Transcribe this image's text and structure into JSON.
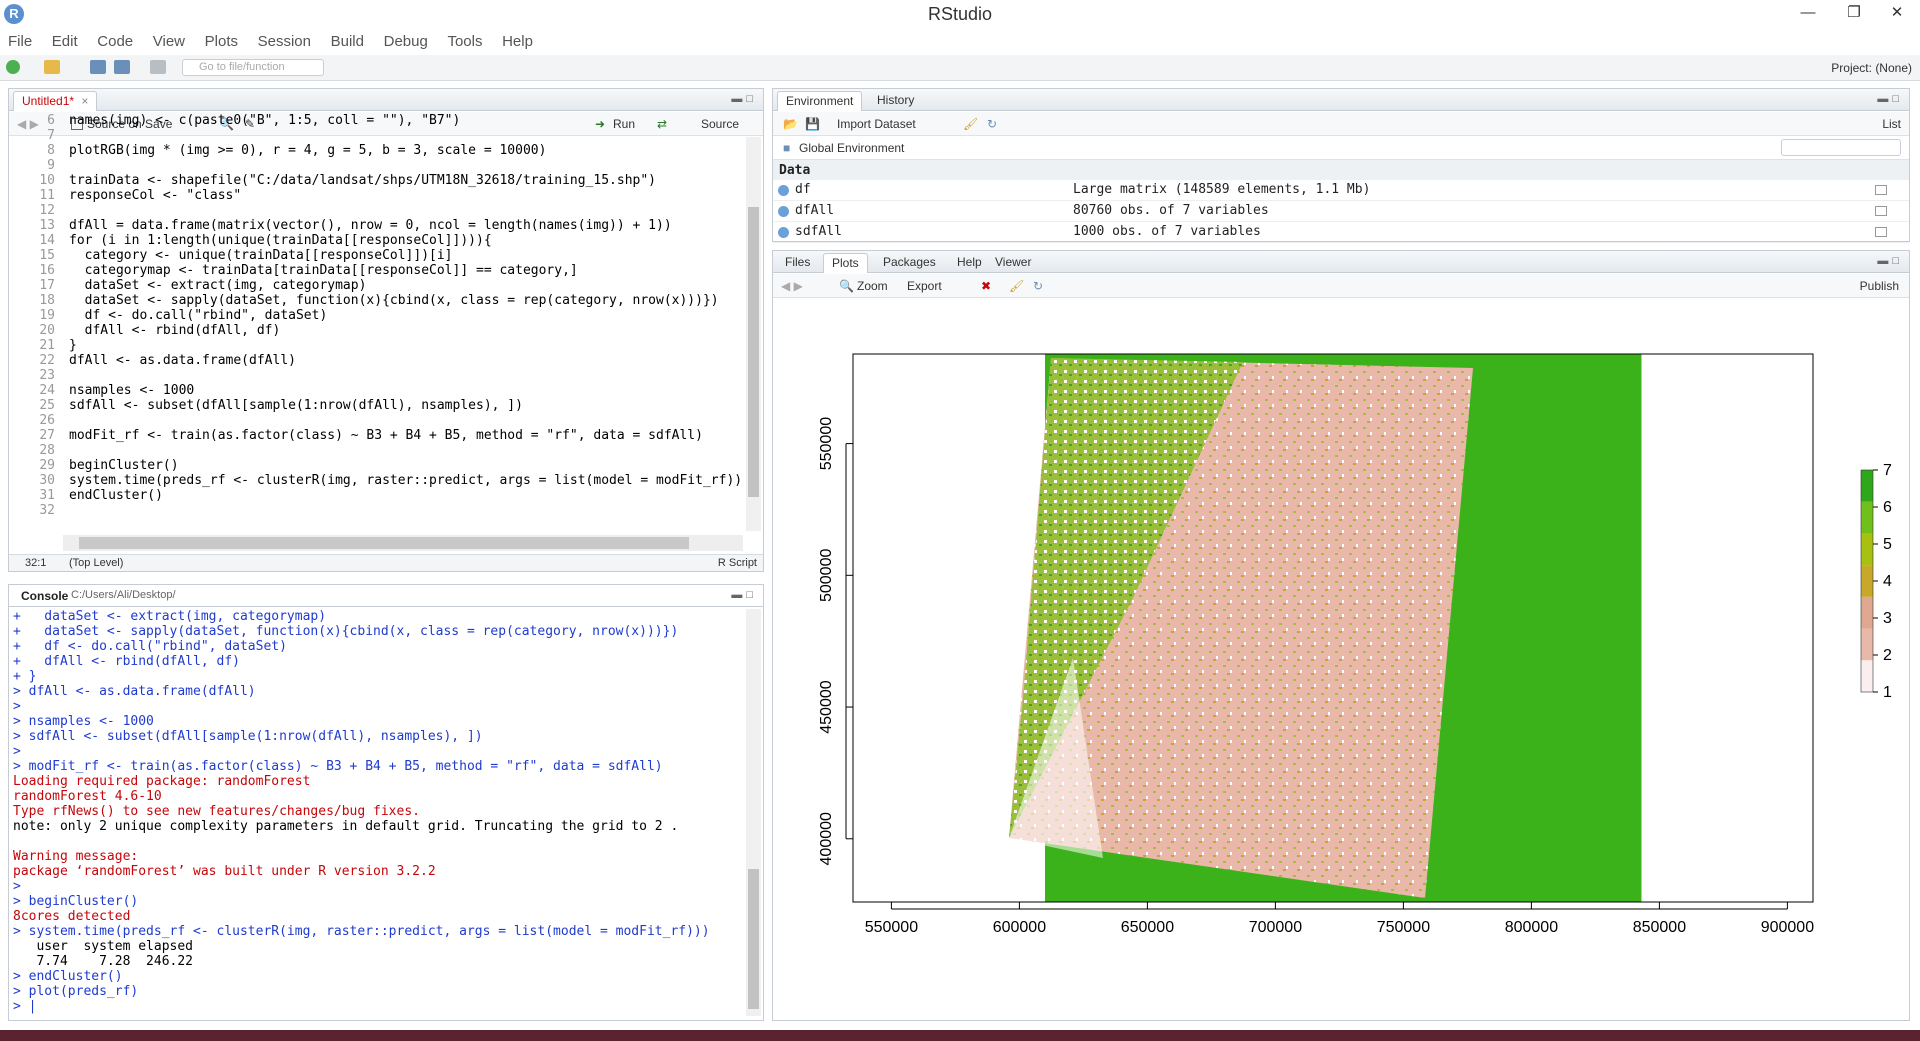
{
  "app": {
    "title": "RStudio"
  },
  "menu": [
    "File",
    "Edit",
    "Code",
    "View",
    "Plots",
    "Session",
    "Build",
    "Debug",
    "Tools",
    "Help"
  ],
  "toolbar": {
    "goto_placeholder": "Go to file/function",
    "project": "Project: (None)"
  },
  "editor": {
    "tab": "Untitled1*",
    "source_on_save": "Source on Save",
    "run": "Run",
    "source": "Source",
    "lines": [
      {
        "n": "6",
        "t": "names(img) <- c(paste0(\"B\", 1:5, coll = \"\"), \"B7\")"
      },
      {
        "n": "7",
        "t": ""
      },
      {
        "n": "8",
        "t": "plotRGB(img * (img >= 0), r = 4, g = 5, b = 3, scale = 10000)"
      },
      {
        "n": "9",
        "t": ""
      },
      {
        "n": "10",
        "t": "trainData <- shapefile(\"C:/data/landsat/shps/UTM18N_32618/training_15.shp\")"
      },
      {
        "n": "11",
        "t": "responseCol <- \"class\""
      },
      {
        "n": "12",
        "t": ""
      },
      {
        "n": "13",
        "t": "dfAll = data.frame(matrix(vector(), nrow = 0, ncol = length(names(img)) + 1))"
      },
      {
        "n": "14",
        "t": "for (i in 1:length(unique(trainData[[responseCol]]))){"
      },
      {
        "n": "15",
        "t": "  category <- unique(trainData[[responseCol]])[i]"
      },
      {
        "n": "16",
        "t": "  categorymap <- trainData[trainData[[responseCol]] == category,]"
      },
      {
        "n": "17",
        "t": "  dataSet <- extract(img, categorymap)"
      },
      {
        "n": "18",
        "t": "  dataSet <- sapply(dataSet, function(x){cbind(x, class = rep(category, nrow(x)))})"
      },
      {
        "n": "19",
        "t": "  df <- do.call(\"rbind\", dataSet)"
      },
      {
        "n": "20",
        "t": "  dfAll <- rbind(dfAll, df)"
      },
      {
        "n": "21",
        "t": "}"
      },
      {
        "n": "22",
        "t": "dfAll <- as.data.frame(dfAll)"
      },
      {
        "n": "23",
        "t": ""
      },
      {
        "n": "24",
        "t": "nsamples <- 1000"
      },
      {
        "n": "25",
        "t": "sdfAll <- subset(dfAll[sample(1:nrow(dfAll), nsamples), ])"
      },
      {
        "n": "26",
        "t": ""
      },
      {
        "n": "27",
        "t": "modFit_rf <- train(as.factor(class) ~ B3 + B4 + B5, method = \"rf\", data = sdfAll)"
      },
      {
        "n": "28",
        "t": ""
      },
      {
        "n": "29",
        "t": "beginCluster()"
      },
      {
        "n": "30",
        "t": "system.time(preds_rf <- clusterR(img, raster::predict, args = list(model = modFit_rf)))"
      },
      {
        "n": "31",
        "t": "endCluster()"
      },
      {
        "n": "32",
        "t": ""
      }
    ],
    "status_pos": "32:1",
    "status_scope": "(Top Level)",
    "status_type": "R Script"
  },
  "console": {
    "title": "Console",
    "path": "C:/Users/Ali/Desktop/",
    "lines": [
      {
        "c": "blue",
        "t": "+   dataSet <- extract(img, categorymap)"
      },
      {
        "c": "blue",
        "t": "+   dataSet <- sapply(dataSet, function(x){cbind(x, class = rep(category, nrow(x)))})"
      },
      {
        "c": "blue",
        "t": "+   df <- do.call(\"rbind\", dataSet)"
      },
      {
        "c": "blue",
        "t": "+   dfAll <- rbind(dfAll, df)"
      },
      {
        "c": "blue",
        "t": "+ }"
      },
      {
        "c": "blue",
        "t": "> dfAll <- as.data.frame(dfAll)"
      },
      {
        "c": "blue",
        "t": ">"
      },
      {
        "c": "blue",
        "t": "> nsamples <- 1000"
      },
      {
        "c": "blue",
        "t": "> sdfAll <- subset(dfAll[sample(1:nrow(dfAll), nsamples), ])"
      },
      {
        "c": "blue",
        "t": ">"
      },
      {
        "c": "blue",
        "t": "> modFit_rf <- train(as.factor(class) ~ B3 + B4 + B5, method = \"rf\", data = sdfAll)"
      },
      {
        "c": "red",
        "t": "Loading required package: randomForest"
      },
      {
        "c": "red",
        "t": "randomForest 4.6-10"
      },
      {
        "c": "red",
        "t": "Type rfNews() to see new features/changes/bug fixes."
      },
      {
        "c": "black",
        "t": "note: only 2 unique complexity parameters in default grid. Truncating the grid to 2 ."
      },
      {
        "c": "black",
        "t": ""
      },
      {
        "c": "red",
        "t": "Warning message:"
      },
      {
        "c": "red",
        "t": "package ‘randomForest’ was built under R version 3.2.2"
      },
      {
        "c": "blue",
        "t": ">"
      },
      {
        "c": "blue",
        "t": "> beginCluster()"
      },
      {
        "c": "red",
        "t": "8cores detected"
      },
      {
        "c": "blue",
        "t": "> system.time(preds_rf <- clusterR(img, raster::predict, args = list(model = modFit_rf)))"
      },
      {
        "c": "black",
        "t": "   user  system elapsed"
      },
      {
        "c": "black",
        "t": "   7.74    7.28  246.22"
      },
      {
        "c": "blue",
        "t": "> endCluster()"
      },
      {
        "c": "blue",
        "t": "> plot(preds_rf)"
      },
      {
        "c": "blue",
        "t": "> |"
      }
    ]
  },
  "environment": {
    "tabs": [
      "Environment",
      "History"
    ],
    "import": "Import Dataset",
    "list": "List",
    "global": "Global Environment",
    "section": "Data",
    "rows": [
      {
        "name": "df",
        "value": "Large matrix (148589 elements, 1.1 Mb)"
      },
      {
        "name": "dfAll",
        "value": "80760 obs. of 7 variables"
      },
      {
        "name": "sdfAll",
        "value": "1000 obs. of 7 variables"
      }
    ]
  },
  "plots_pane": {
    "tabs": [
      "Files",
      "Plots",
      "Packages",
      "Help",
      "Viewer"
    ],
    "zoom": "Zoom",
    "export": "Export",
    "publish": "Publish"
  },
  "chart_data": {
    "type": "heatmap",
    "title": "",
    "xlabel": "",
    "ylabel": "",
    "xlim": [
      535000,
      910000
    ],
    "ylim": [
      376000,
      584000
    ],
    "x_ticks": [
      "550000",
      "600000",
      "650000",
      "700000",
      "750000",
      "800000",
      "850000",
      "900000"
    ],
    "y_ticks": [
      "400000",
      "450000",
      "500000",
      "550000"
    ],
    "green_extent": {
      "x": [
        610000,
        843000
      ],
      "y": [
        376000,
        584000
      ]
    },
    "legend": {
      "values": [
        "1",
        "2",
        "3",
        "4",
        "5",
        "6",
        "7"
      ],
      "colors": [
        "#fbeeee",
        "#e8b9a9",
        "#e0a890",
        "#c8a82a",
        "#a8c010",
        "#6fc01a",
        "#2ea81a"
      ],
      "range": [
        1,
        7
      ]
    },
    "classes": [
      {
        "value": 1,
        "color": "#ffffff",
        "label": "1"
      },
      {
        "value": 2,
        "color": "#ebb8a8",
        "label": "2"
      },
      {
        "value": 5,
        "color": "#9cc33a",
        "label": "5"
      },
      {
        "value": 7,
        "color": "#2f9d1e",
        "label": "7"
      }
    ]
  }
}
